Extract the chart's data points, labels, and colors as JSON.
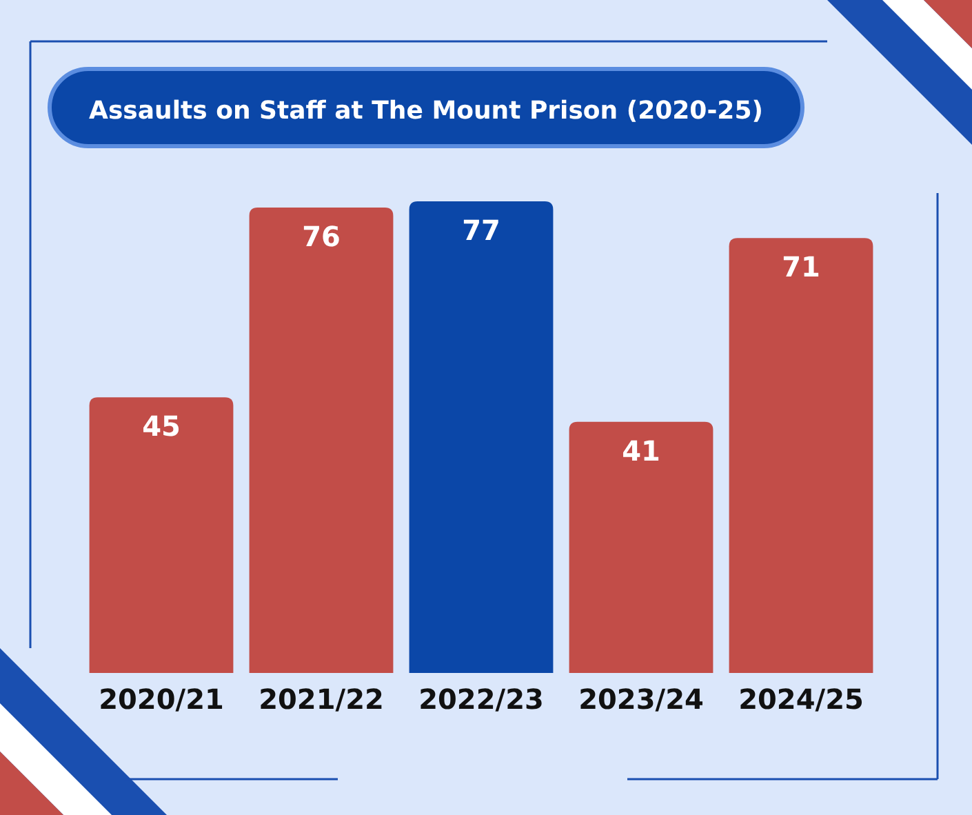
{
  "chart_data": {
    "type": "bar",
    "title": "Assaults on Staff at The Mount Prison (2020-25)",
    "categories": [
      "2020/21",
      "2021/22",
      "2022/23",
      "2023/24",
      "2024/25"
    ],
    "values": [
      45,
      76,
      77,
      41,
      71
    ],
    "colors": [
      "#c24d48",
      "#c24d48",
      "#0b47a8",
      "#c24d48",
      "#c24d48"
    ],
    "data_labels": true
  }
}
